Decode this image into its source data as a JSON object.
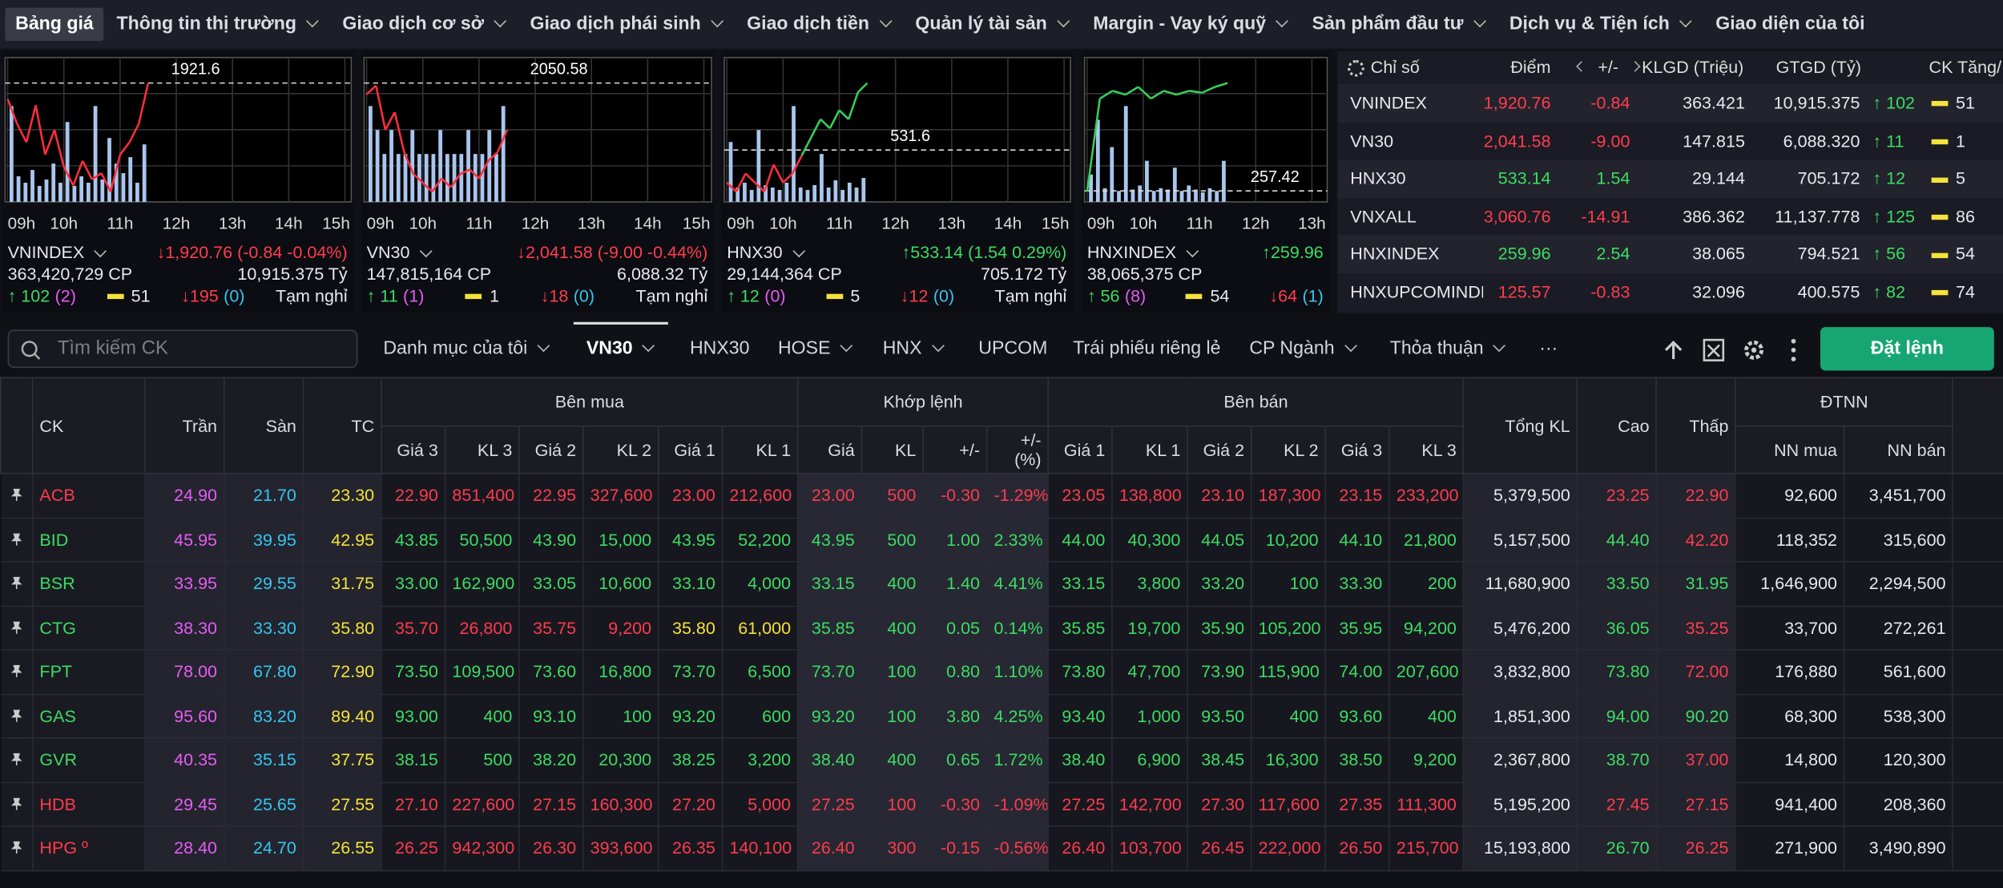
{
  "nav": [
    "Bảng giá",
    "Thông tin thị trường",
    "Giao dịch cơ sở",
    "Giao dịch phái sinh",
    "Giao dịch tiền",
    "Quản lý tài sản",
    "Margin - Vay ký quỹ",
    "Sản phẩm đầu tư",
    "Dịch vụ & Tiện ích",
    "Giao diện của tôi"
  ],
  "cards": [
    {
      "hours": [
        "09h",
        "10h",
        "11h",
        "12h",
        "13h",
        "14h",
        "15h"
      ],
      "ref": 1921.6,
      "prices": [
        1919,
        1915,
        1912,
        1918,
        1910,
        1914,
        1908,
        1905,
        1909,
        1906,
        1907,
        1904,
        1910,
        1912,
        1915,
        1921.6
      ],
      "volumes": [
        30,
        8,
        6,
        10,
        5,
        7,
        12,
        6,
        25,
        5,
        8,
        6,
        30,
        7,
        20,
        12,
        9,
        14,
        6,
        18
      ],
      "name": "VNINDEX",
      "change": "↓1,920.76 (-0.84 -0.04%)",
      "color": "#ff3d4f",
      "volume": "363,420,729 CP",
      "value": "10,915.375 Tỷ",
      "up": "↑ 102",
      "ceiling": "(2)",
      "flat": "51",
      "down": "↓195",
      "floor": "(0)",
      "status": "Tạm nghỉ"
    },
    {
      "hours": [
        "09h",
        "10h",
        "11h",
        "12h",
        "13h",
        "14h",
        "15h"
      ],
      "ref": 2050.58,
      "prices": [
        2048,
        2050,
        2040,
        2044,
        2035,
        2030,
        2028,
        2026,
        2029,
        2027,
        2030,
        2031,
        2029,
        2033,
        2035,
        2040
      ],
      "volumes": [
        4,
        3,
        2,
        3,
        2,
        2,
        3,
        2,
        2,
        2,
        3,
        2,
        2,
        2,
        3,
        2,
        2,
        3,
        2,
        4
      ],
      "name": "VN30",
      "change": "↓2,041.58 (-9.00 -0.44%)",
      "color": "#ff3d4f",
      "volume": "147,815,164 CP",
      "value": "6,088.32 Tỷ",
      "up": "↑ 11",
      "ceiling": "(1)",
      "flat": "1",
      "down": "↓18",
      "floor": "(0)",
      "status": "Tạm nghỉ"
    },
    {
      "hours": [
        "09h",
        "10h",
        "11h",
        "12h",
        "13h",
        "14h",
        "15h"
      ],
      "ref": 531.6,
      "prices": [
        528,
        527,
        529,
        528,
        527,
        530,
        528,
        529,
        531,
        533,
        535,
        534,
        536,
        535,
        538,
        539
      ],
      "volumes": [
        25,
        6,
        8,
        5,
        30,
        7,
        6,
        5,
        8,
        40,
        6,
        5,
        7,
        20,
        6,
        9,
        5,
        8,
        6,
        10
      ],
      "name": "HNX30",
      "change": "↑533.14 (1.54 0.29%)",
      "color": "#3ddc63",
      "volume": "29,144,364 CP",
      "value": "705.172 Tỷ",
      "up": "↑ 12",
      "ceiling": "(0)",
      "flat": "5",
      "down": "↓12",
      "floor": "(0)",
      "status": "Tạm nghỉ"
    },
    {
      "hours": [
        "09h",
        "10h",
        "11h",
        "12h",
        "13h"
      ],
      "ref": 257.42,
      "prices": [
        257.4,
        259.8,
        260,
        259.9,
        260.1,
        259.8,
        260,
        259.9,
        260,
        259.95,
        260.1,
        260.2
      ],
      "volumes": [
        20,
        60,
        10,
        40,
        8,
        70,
        9,
        12,
        30,
        8,
        10,
        9,
        25,
        8,
        12,
        9,
        7,
        10,
        8,
        30
      ],
      "name": "HNXINDEX",
      "change": "↑259.96",
      "color": "#3ddc63",
      "volume": "38,065,375 CP",
      "up": "↑ 56",
      "ceiling": "(8)",
      "flat": "54",
      "down": "↓64",
      "floor": "(1)"
    }
  ],
  "indices": {
    "headers": [
      "Chỉ số",
      "Điểm",
      "+/-",
      "KLGD (Triệu)",
      "GTGD (Tỷ)",
      "CK Tăng/"
    ],
    "rows": [
      [
        "VNINDEX",
        "1,920.76",
        "-0.84",
        "363.421",
        "10,915.375",
        "↑ 102",
        "51"
      ],
      [
        "VN30",
        "2,041.58",
        "-9.00",
        "147.815",
        "6,088.320",
        "↑ 11",
        "1"
      ],
      [
        "HNX30",
        "533.14",
        "1.54",
        "29.144",
        "705.172",
        "↑ 12",
        "5"
      ],
      [
        "VNXALL",
        "3,060.76",
        "-14.91",
        "386.362",
        "11,137.778",
        "↑ 125",
        "86"
      ],
      [
        "HNXINDEX",
        "259.96",
        "2.54",
        "38.065",
        "794.521",
        "↑ 56",
        "54"
      ],
      [
        "HNXUPCOMINDE",
        "125.57",
        "-0.83",
        "32.096",
        "400.575",
        "↑ 82",
        "74"
      ]
    ]
  },
  "toolbar": {
    "search": "Tìm kiếm CK",
    "tabs": [
      "Danh mục của tôi",
      "VN30",
      "HNX30",
      "HOSE",
      "HNX",
      "UPCOM",
      "Trái phiếu riêng lẻ",
      "CP Ngành",
      "Thỏa thuận",
      "···"
    ],
    "order": "Đặt lệnh"
  },
  "board": {
    "headers": [
      "CK",
      "Trần",
      "Sàn",
      "TC",
      "Bên mua",
      "Khớp lệnh",
      "Bên bán",
      "Tổng KL",
      "Cao",
      "Thấp",
      "ĐTNN"
    ],
    "subheaders": [
      "Giá 3",
      "KL 3",
      "Giá 2",
      "KL 2",
      "Giá 1",
      "KL 1",
      "Giá",
      "KL",
      "+/-",
      "+/- (%)",
      "Giá 1",
      "KL 1",
      "Giá 2",
      "KL 2",
      "Giá 3",
      "KL 3",
      "NN mua",
      "NN bán"
    ],
    "rows": [
      [
        "ACB",
        "24.90",
        "21.70",
        "23.30",
        "22.90",
        "851,400",
        "22.95",
        "327,600",
        "23.00",
        "212,600",
        "23.00",
        "500",
        "-0.30",
        "-1.29%",
        "23.05",
        "138,800",
        "23.10",
        "187,300",
        "23.15",
        "233,200",
        "5,379,500",
        "23.25",
        "22.90",
        "92,600",
        "3,451,700"
      ],
      [
        "BID",
        "45.95",
        "39.95",
        "42.95",
        "43.85",
        "50,500",
        "43.90",
        "15,000",
        "43.95",
        "52,200",
        "43.95",
        "500",
        "1.00",
        "2.33%",
        "44.00",
        "40,300",
        "44.05",
        "10,200",
        "44.10",
        "21,800",
        "5,157,500",
        "44.40",
        "42.20",
        "118,352",
        "315,600"
      ],
      [
        "BSR",
        "33.95",
        "29.55",
        "31.75",
        "33.00",
        "162,900",
        "33.05",
        "10,600",
        "33.10",
        "4,000",
        "33.15",
        "400",
        "1.40",
        "4.41%",
        "33.15",
        "3,800",
        "33.20",
        "100",
        "33.30",
        "200",
        "11,680,900",
        "33.50",
        "31.95",
        "1,646,900",
        "2,294,500"
      ],
      [
        "CTG",
        "38.30",
        "33.30",
        "35.80",
        "35.70",
        "26,800",
        "35.75",
        "9,200",
        "35.80",
        "61,000",
        "35.85",
        "400",
        "0.05",
        "0.14%",
        "35.85",
        "19,700",
        "35.90",
        "105,200",
        "35.95",
        "94,200",
        "5,476,200",
        "36.05",
        "35.25",
        "33,700",
        "272,261"
      ],
      [
        "FPT",
        "78.00",
        "67.80",
        "72.90",
        "73.50",
        "109,500",
        "73.60",
        "16,800",
        "73.70",
        "6,500",
        "73.70",
        "100",
        "0.80",
        "1.10%",
        "73.80",
        "47,700",
        "73.90",
        "115,900",
        "74.00",
        "207,600",
        "3,832,800",
        "73.80",
        "72.00",
        "176,880",
        "561,600"
      ],
      [
        "GAS",
        "95.60",
        "83.20",
        "89.40",
        "93.00",
        "400",
        "93.10",
        "100",
        "93.20",
        "600",
        "93.20",
        "100",
        "3.80",
        "4.25%",
        "93.40",
        "1,000",
        "93.50",
        "400",
        "93.60",
        "400",
        "1,851,300",
        "94.00",
        "90.20",
        "68,300",
        "538,300"
      ],
      [
        "GVR",
        "40.35",
        "35.15",
        "37.75",
        "38.15",
        "500",
        "38.20",
        "20,300",
        "38.25",
        "3,200",
        "38.40",
        "400",
        "0.65",
        "1.72%",
        "38.40",
        "6,900",
        "38.45",
        "16,300",
        "38.50",
        "9,200",
        "2,367,800",
        "38.70",
        "37.00",
        "14,800",
        "120,300"
      ],
      [
        "HDB",
        "29.45",
        "25.65",
        "27.55",
        "27.10",
        "227,600",
        "27.15",
        "160,300",
        "27.20",
        "5,000",
        "27.25",
        "100",
        "-0.30",
        "-1.09%",
        "27.25",
        "142,700",
        "27.30",
        "117,600",
        "27.35",
        "111,300",
        "5,195,200",
        "27.45",
        "27.15",
        "941,400",
        "208,360"
      ],
      [
        "HPG º",
        "28.40",
        "24.70",
        "26.55",
        "26.25",
        "942,300",
        "26.30",
        "393,600",
        "26.35",
        "140,100",
        "26.40",
        "300",
        "-0.15",
        "-0.56%",
        "26.40",
        "103,700",
        "26.45",
        "222,000",
        "26.50",
        "215,700",
        "15,193,800",
        "26.70",
        "26.25",
        "271,900",
        "3,490,890"
      ]
    ]
  }
}
